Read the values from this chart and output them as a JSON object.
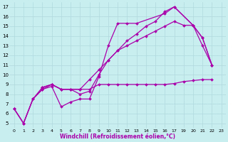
{
  "title": "",
  "xlabel": "Windchill (Refroidissement éolien,°C)",
  "ylabel": "",
  "bg_color": "#c8eef0",
  "line_color": "#aa00aa",
  "grid_color": "#b0d8db",
  "xlim": [
    -0.5,
    23.5
  ],
  "ylim": [
    4.5,
    17.5
  ],
  "xticks": [
    0,
    1,
    2,
    3,
    4,
    5,
    6,
    7,
    8,
    9,
    10,
    11,
    12,
    13,
    14,
    15,
    16,
    17,
    19,
    20,
    21,
    22,
    23
  ],
  "xtick_positions": [
    0,
    1,
    2,
    3,
    4,
    5,
    6,
    7,
    8,
    9,
    10,
    11,
    12,
    13,
    14,
    15,
    16,
    17,
    18,
    19,
    20,
    21,
    22
  ],
  "yticks": [
    5,
    6,
    7,
    8,
    9,
    10,
    11,
    12,
    13,
    14,
    15,
    16,
    17
  ],
  "series": [
    {
      "x": [
        0,
        1,
        2,
        3,
        4,
        5,
        6,
        7,
        8,
        9,
        10,
        11,
        12,
        13,
        16,
        17,
        20,
        21,
        22
      ],
      "y": [
        6.5,
        5.0,
        7.5,
        8.5,
        8.8,
        6.7,
        7.2,
        7.5,
        7.5,
        9.8,
        13.0,
        15.3,
        15.3,
        15.3,
        16.3,
        17.0,
        15.1,
        13.8,
        11.0
      ]
    },
    {
      "x": [
        0,
        1,
        2,
        3,
        4,
        5,
        6,
        7,
        8,
        9,
        10,
        11,
        12,
        13,
        14,
        15,
        16,
        17,
        19,
        20,
        21,
        22
      ],
      "y": [
        6.5,
        5.0,
        7.5,
        8.7,
        9.0,
        8.5,
        8.5,
        8.5,
        8.5,
        9.0,
        9.0,
        9.0,
        9.0,
        9.0,
        9.0,
        9.0,
        9.0,
        9.1,
        9.3,
        9.4,
        9.5,
        9.5
      ]
    },
    {
      "x": [
        3,
        4,
        5,
        6,
        7,
        8,
        9,
        10,
        11,
        12,
        13,
        14,
        15,
        16,
        17,
        20,
        21,
        22
      ],
      "y": [
        8.7,
        9.0,
        8.5,
        8.5,
        8.0,
        8.3,
        10.0,
        11.5,
        12.5,
        13.5,
        14.2,
        15.0,
        15.5,
        16.5,
        17.0,
        15.1,
        13.0,
        11.0
      ]
    },
    {
      "x": [
        0,
        1,
        2,
        3,
        4,
        5,
        6,
        7,
        8,
        9,
        10,
        11,
        12,
        13,
        14,
        15,
        16,
        17,
        19,
        20,
        21,
        22
      ],
      "y": [
        6.5,
        5.0,
        7.5,
        8.5,
        9.0,
        8.5,
        8.5,
        8.5,
        9.5,
        10.5,
        11.5,
        12.5,
        13.0,
        13.5,
        14.0,
        14.5,
        15.0,
        15.5,
        15.1,
        15.1,
        13.8,
        11.0
      ]
    }
  ],
  "marker": "D",
  "markersize": 2.0,
  "linewidth": 0.9
}
